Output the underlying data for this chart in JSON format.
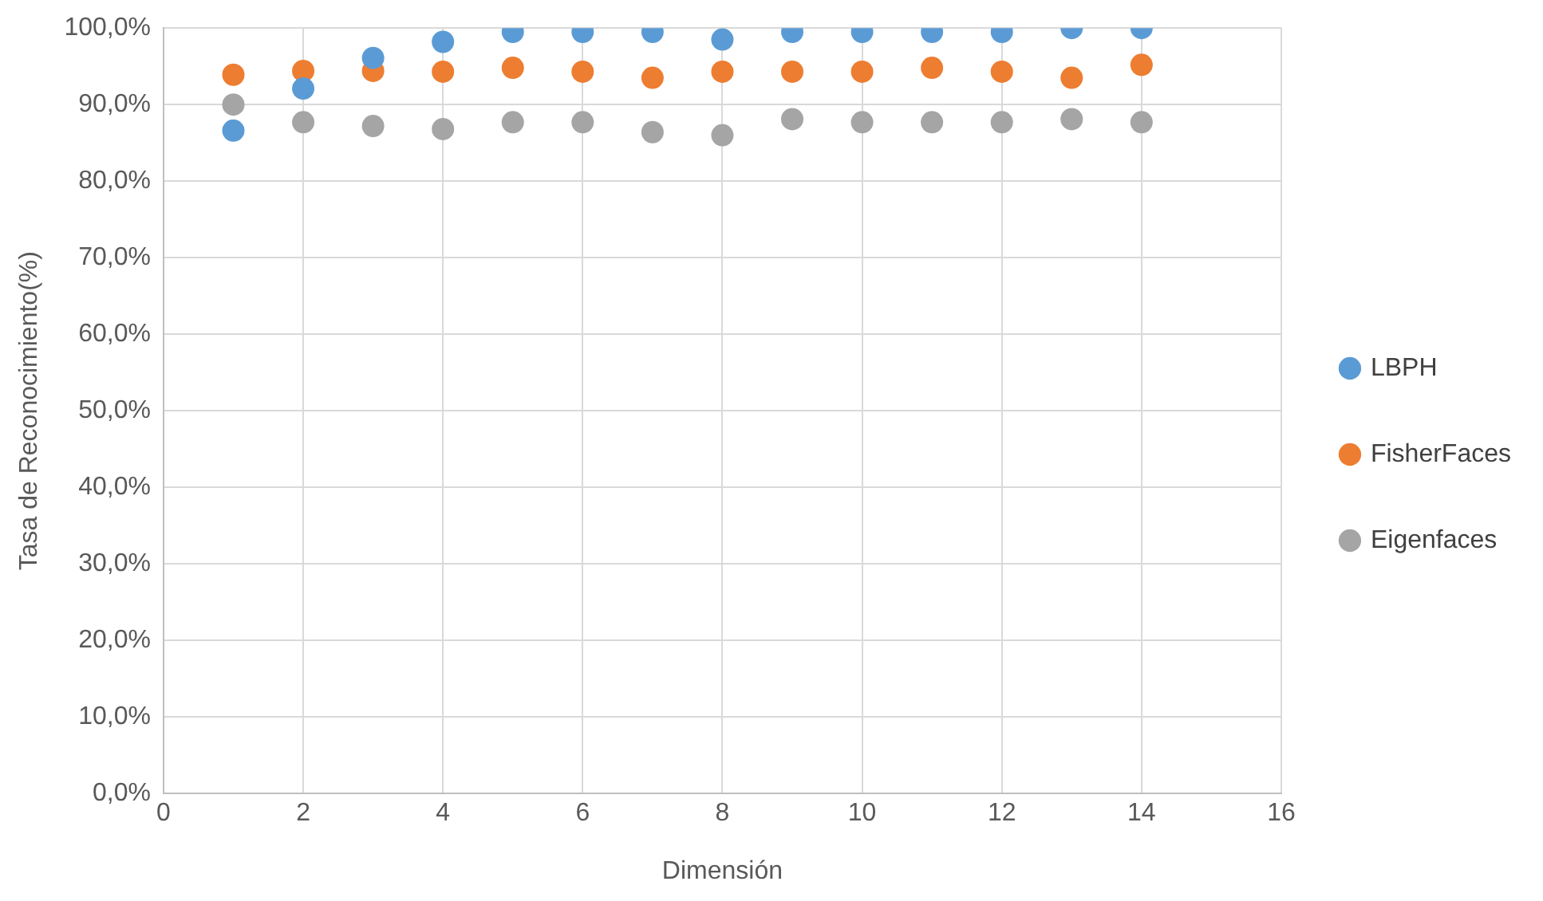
{
  "chart_data": {
    "type": "scatter",
    "xlabel": "Dimensión",
    "ylabel": "Tasa de Reconocimiento(%)",
    "x": [
      1,
      2,
      3,
      4,
      5,
      6,
      7,
      8,
      9,
      10,
      11,
      12,
      13,
      14
    ],
    "series": [
      {
        "name": "LBPH",
        "color": "#5b9bd5",
        "values": [
          86.6,
          92.1,
          96.1,
          98.2,
          99.5,
          99.5,
          99.5,
          98.5,
          99.5,
          99.5,
          99.5,
          99.5,
          100,
          100
        ]
      },
      {
        "name": "FisherFaces",
        "color": "#ed7d31",
        "values": [
          93.9,
          94.4,
          94.4,
          94.3,
          94.8,
          94.3,
          93.5,
          94.3,
          94.3,
          94.3,
          94.8,
          94.3,
          93.5,
          95.2
        ]
      },
      {
        "name": "Eigenfaces",
        "color": "#a5a5a5",
        "values": [
          90.0,
          87.7,
          87.2,
          86.8,
          87.7,
          87.7,
          86.4,
          86.0,
          88.1,
          87.7,
          87.7,
          87.7,
          88.1,
          87.7
        ]
      }
    ],
    "xlim": [
      0,
      16
    ],
    "xticks": [
      0,
      2,
      4,
      6,
      8,
      10,
      12,
      14,
      16
    ],
    "ylim": [
      0,
      100
    ],
    "yticks": [
      {
        "value": 0,
        "label": "0,0%"
      },
      {
        "value": 10,
        "label": "10,0%"
      },
      {
        "value": 20,
        "label": "20,0%"
      },
      {
        "value": 30,
        "label": "30,0%"
      },
      {
        "value": 40,
        "label": "40,0%"
      },
      {
        "value": 50,
        "label": "50,0%"
      },
      {
        "value": 60,
        "label": "60,0%"
      },
      {
        "value": 70,
        "label": "70,0%"
      },
      {
        "value": 80,
        "label": "80,0%"
      },
      {
        "value": 90,
        "label": "90,0%"
      },
      {
        "value": 100,
        "label": "100,0%"
      }
    ],
    "grid": true,
    "legend": "right",
    "marker": "circle"
  }
}
